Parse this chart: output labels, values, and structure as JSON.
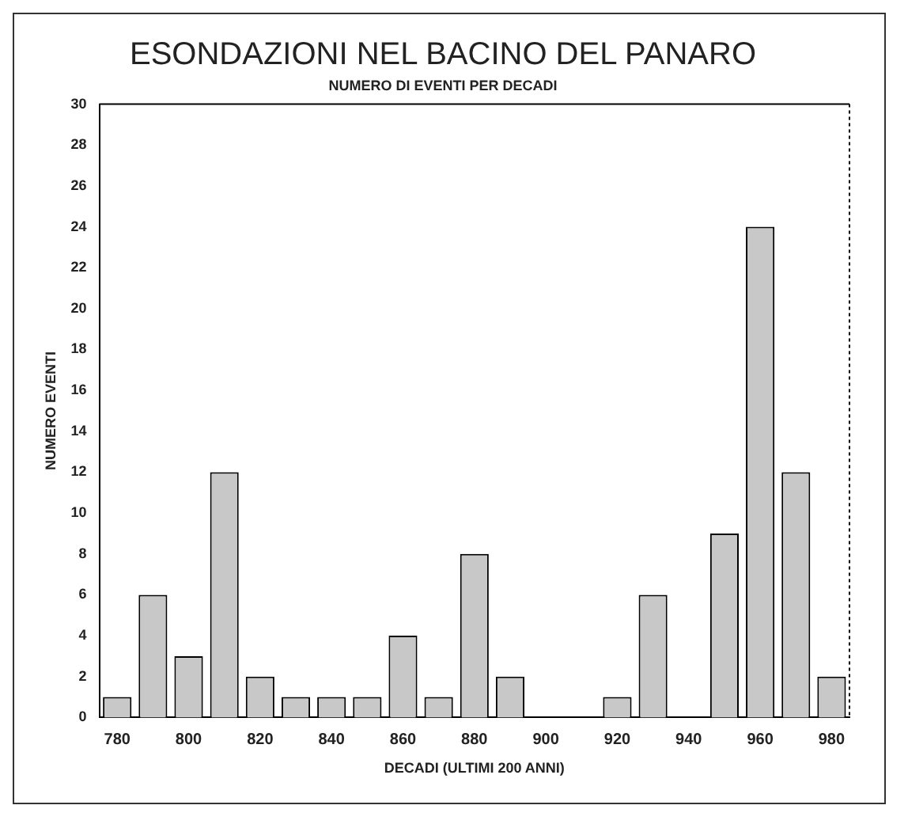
{
  "chart_data": {
    "type": "bar",
    "title": "ESONDAZIONI NEL BACINO DEL PANARO",
    "subtitle": "NUMERO DI EVENTI PER DECADI",
    "xlabel": "DECADI (ULTIMI 200 ANNI)",
    "ylabel": "NUMERO EVENTI",
    "categories": [
      "780",
      null,
      "800",
      null,
      "820",
      null,
      "840",
      null,
      "860",
      null,
      "880",
      null,
      "900",
      null,
      "920",
      null,
      "940",
      null,
      "960",
      null,
      "980"
    ],
    "values": [
      1,
      6,
      3,
      12,
      2,
      1,
      1,
      1,
      4,
      1,
      8,
      2,
      0,
      0,
      1,
      6,
      0,
      9,
      24,
      12,
      2
    ],
    "color": "#c8c8c8",
    "ylim": [
      0,
      30
    ],
    "yticks": [
      0,
      2,
      4,
      6,
      8,
      10,
      12,
      14,
      16,
      18,
      20,
      22,
      24,
      26,
      28,
      30
    ],
    "grid": false,
    "legend": false
  }
}
